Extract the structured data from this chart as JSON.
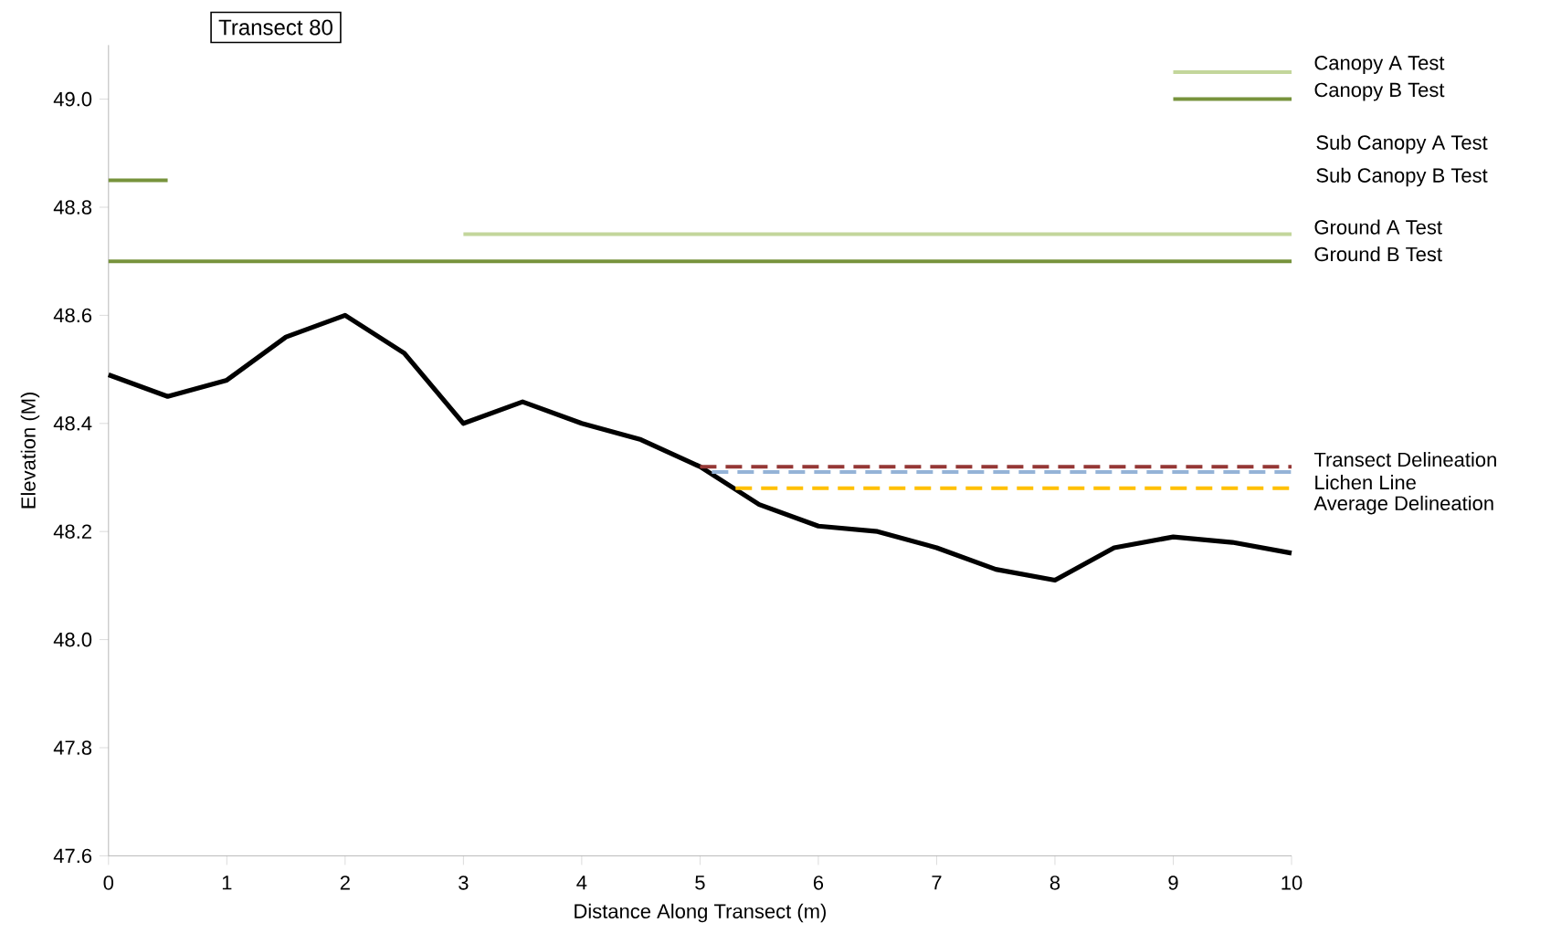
{
  "chart_data": {
    "type": "line",
    "title": "Transect 80",
    "xlabel": "Distance Along Transect (m)",
    "ylabel": "Elevation (M)",
    "xlim": [
      0,
      10
    ],
    "ylim": [
      47.6,
      49.1
    ],
    "xticks": [
      0,
      1,
      2,
      3,
      4,
      5,
      6,
      7,
      8,
      9,
      10
    ],
    "yticks": [
      {
        "value": 47.6,
        "label": "47.6"
      },
      {
        "value": 47.8,
        "label": "47.8"
      },
      {
        "value": 48.0,
        "label": "48.0"
      },
      {
        "value": 48.2,
        "label": "48.2"
      },
      {
        "value": 48.4,
        "label": "48.4"
      },
      {
        "value": 48.6,
        "label": "48.6"
      },
      {
        "value": 48.8,
        "label": "48.8"
      },
      {
        "value": 49.0,
        "label": "49.0"
      }
    ],
    "series": [
      {
        "color": "#000000",
        "x": [
          0,
          0.5,
          1,
          1.5,
          2,
          2.5,
          3,
          3.5,
          4,
          4.5,
          5,
          5.5,
          6,
          6.5,
          7,
          7.5,
          8,
          8.5,
          9,
          9.5,
          10
        ],
        "values": [
          48.49,
          48.45,
          48.48,
          48.56,
          48.6,
          48.53,
          48.4,
          48.44,
          48.4,
          48.37,
          48.32,
          48.25,
          48.21,
          48.2,
          48.17,
          48.13,
          48.11,
          48.17,
          48.19,
          48.18,
          48.16
        ]
      },
      {
        "name": "Canopy A Test",
        "color": "#c3d69b",
        "x": [
          9,
          10
        ],
        "values": [
          49.05,
          49.05
        ]
      },
      {
        "name": "Canopy B Test",
        "color": "#77933c",
        "x": [
          9,
          10
        ],
        "values": [
          49.0,
          49.0
        ]
      },
      {
        "color": "#77933c",
        "x": [
          0,
          0.5
        ],
        "values": [
          48.85,
          48.85
        ]
      },
      {
        "name": "Ground A Test",
        "color": "#c3d69b",
        "x": [
          3,
          10
        ],
        "values": [
          48.75,
          48.75
        ]
      },
      {
        "name": "Ground B Test",
        "color": "#77933c",
        "x": [
          0,
          10
        ],
        "values": [
          48.7,
          48.7
        ]
      },
      {
        "name": "Transect Delineation",
        "color": "#953735",
        "line_style": "dashed",
        "x": [
          5,
          10
        ],
        "values": [
          48.32,
          48.32
        ]
      },
      {
        "name": "Lichen Line",
        "color": "#95b3d7",
        "line_style": "dashed",
        "x": [
          5.1,
          10
        ],
        "values": [
          48.31,
          48.31
        ]
      },
      {
        "name": "Average Delineation",
        "color": "#ffc000",
        "line_style": "dashed",
        "x": [
          5.3,
          10
        ],
        "values": [
          48.28,
          48.28
        ]
      }
    ],
    "annotations": [
      "Sub Canopy A Test",
      "Sub Canopy B Test"
    ]
  }
}
